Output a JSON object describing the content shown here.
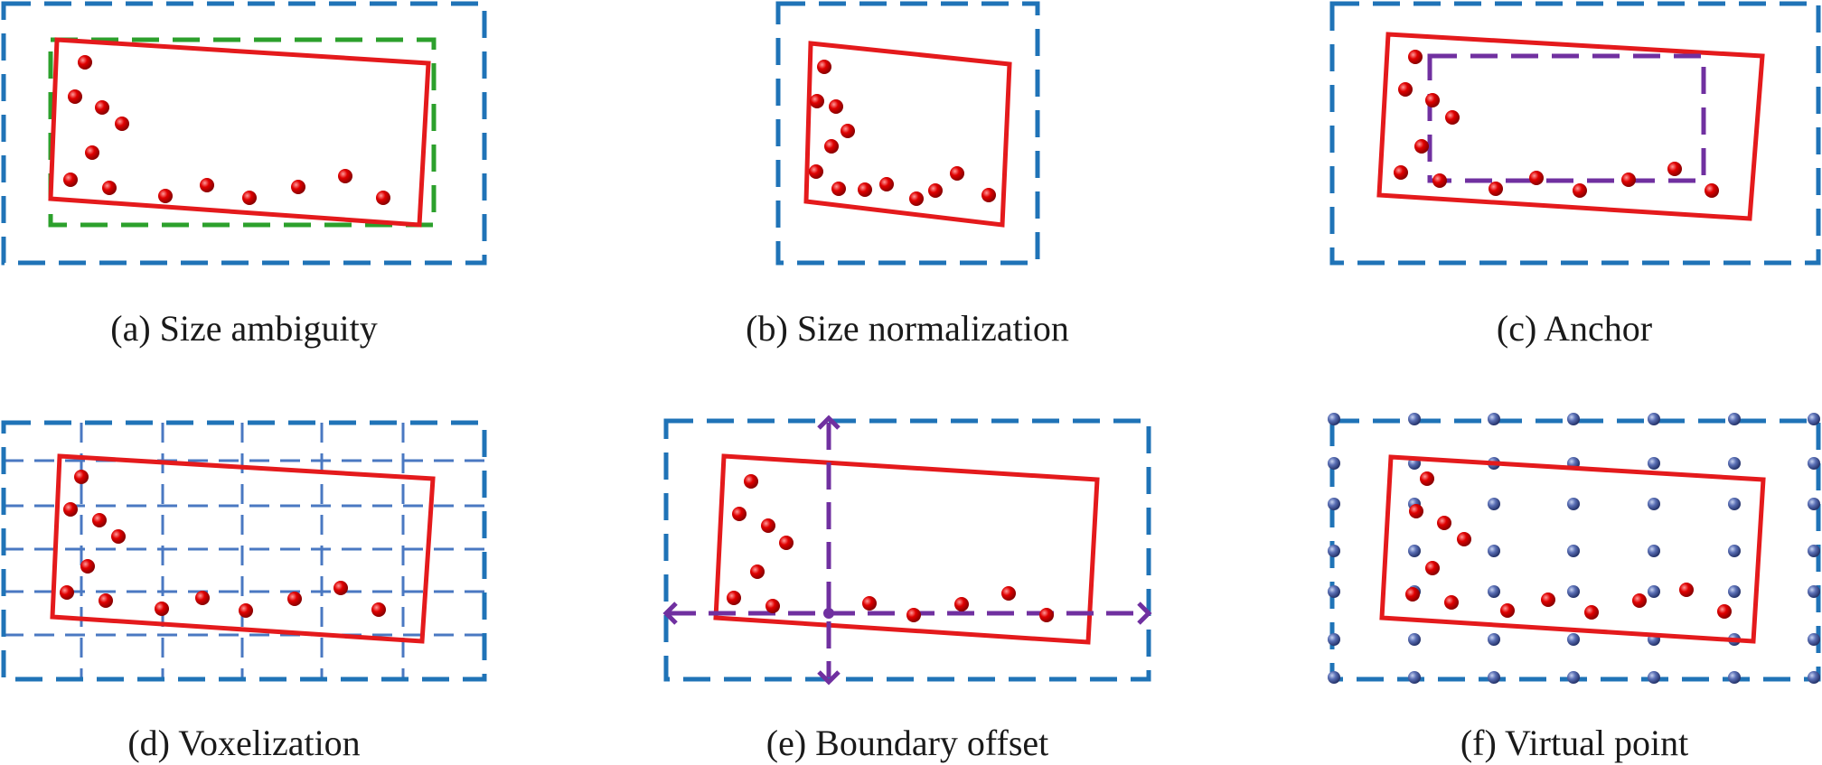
{
  "colors": {
    "proposal_box": "#1f73b7",
    "ground_truth_box": "#e41a1c",
    "axis_aligned_box": "#2ca02c",
    "anchor_box": "#7030a0",
    "voxel_grid": "#4a78c2",
    "lidar_point": "#e00000",
    "virtual_point": "#5a6fb5"
  },
  "panels": [
    {
      "id": "a",
      "caption": "(a) Size ambiguity"
    },
    {
      "id": "b",
      "caption": "(b) Size normalization"
    },
    {
      "id": "c",
      "caption": "(c) Anchor"
    },
    {
      "id": "d",
      "caption": "(d) Voxelization"
    },
    {
      "id": "e",
      "caption": "(e) Boundary offset"
    },
    {
      "id": "f",
      "caption": "(f) Virtual point"
    }
  ]
}
